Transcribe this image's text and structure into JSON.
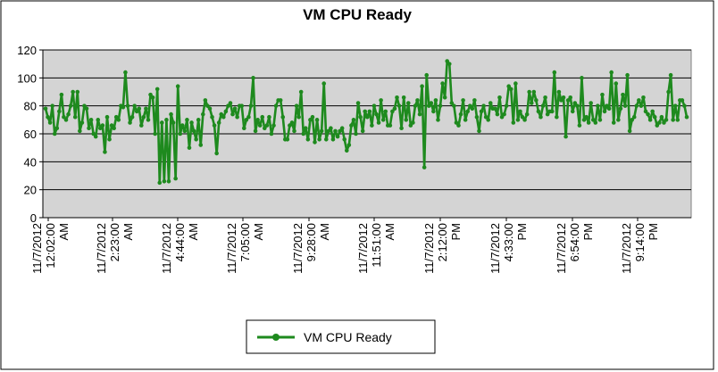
{
  "chart_data": {
    "type": "line",
    "title": "VM CPU Ready",
    "xlabel": "",
    "ylabel": "",
    "ylim": [
      0,
      120
    ],
    "yticks": [
      0,
      20,
      40,
      60,
      80,
      100,
      120
    ],
    "grid": true,
    "legend_position": "bottom",
    "colors": {
      "series": "#1e8a1e",
      "plot_bg": "#d4d4d4",
      "grid": "#000000"
    },
    "x_ticks": [
      {
        "date": "11/7/2012",
        "time": "12:02:00",
        "ampm": "AM"
      },
      {
        "date": "11/7/2012",
        "time": "2:23:00",
        "ampm": "AM"
      },
      {
        "date": "11/7/2012",
        "time": "4:44:00",
        "ampm": "AM"
      },
      {
        "date": "11/7/2012",
        "time": "7:05:00",
        "ampm": "AM"
      },
      {
        "date": "11/7/2012",
        "time": "9:28:00",
        "ampm": "AM"
      },
      {
        "date": "11/7/2012",
        "time": "11:51:00",
        "ampm": "AM"
      },
      {
        "date": "11/7/2012",
        "time": "2:12:00",
        "ampm": "PM"
      },
      {
        "date": "11/7/2012",
        "time": "4:33:00",
        "ampm": "PM"
      },
      {
        "date": "11/7/2012",
        "time": "6:54:00",
        "ampm": "PM"
      },
      {
        "date": "11/7/2012",
        "time": "9:14:00",
        "ampm": "PM"
      }
    ],
    "series": [
      {
        "name": "VM CPU Ready",
        "values": [
          78,
          72,
          68,
          80,
          60,
          64,
          76,
          88,
          72,
          70,
          74,
          80,
          90,
          72,
          90,
          62,
          68,
          80,
          78,
          64,
          70,
          60,
          58,
          70,
          64,
          66,
          47,
          72,
          56,
          66,
          64,
          72,
          70,
          80,
          79,
          104,
          80,
          68,
          72,
          80,
          76,
          78,
          66,
          72,
          78,
          70,
          88,
          86,
          60,
          92,
          25,
          68,
          26,
          70,
          26,
          74,
          68,
          28,
          94,
          60,
          66,
          62,
          70,
          50,
          68,
          62,
          56,
          70,
          52,
          74,
          84,
          80,
          78,
          72,
          66,
          46,
          68,
          74,
          72,
          76,
          80,
          82,
          74,
          78,
          72,
          80,
          80,
          64,
          70,
          72,
          80,
          100,
          62,
          70,
          66,
          72,
          64,
          66,
          72,
          60,
          66,
          80,
          84,
          84,
          72,
          56,
          56,
          66,
          68,
          62,
          80,
          72,
          90,
          60,
          64,
          56,
          70,
          72,
          54,
          70,
          56,
          62,
          96,
          56,
          62,
          64,
          56,
          62,
          58,
          62,
          64,
          56,
          48,
          52,
          66,
          70,
          60,
          82,
          72,
          62,
          76,
          72,
          76,
          66,
          80,
          74,
          68,
          84,
          70,
          76,
          66,
          66,
          76,
          78,
          86,
          80,
          64,
          86,
          70,
          82,
          66,
          68,
          80,
          84,
          74,
          94,
          36,
          102,
          80,
          82,
          76,
          84,
          70,
          80,
          96,
          86,
          112,
          110,
          82,
          80,
          68,
          66,
          74,
          84,
          70,
          76,
          80,
          78,
          84,
          72,
          62,
          76,
          80,
          72,
          70,
          82,
          78,
          78,
          74,
          86,
          72,
          74,
          80,
          94,
          92,
          68,
          96,
          70,
          76,
          72,
          70,
          74,
          90,
          82,
          90,
          84,
          76,
          72,
          80,
          86,
          74,
          76,
          76,
          104,
          72,
          90,
          84,
          86,
          58,
          84,
          86,
          76,
          82,
          80,
          66,
          100,
          70,
          72,
          68,
          82,
          70,
          68,
          80,
          70,
          88,
          76,
          80,
          78,
          104,
          68,
          96,
          70,
          78,
          88,
          80,
          102,
          62,
          70,
          72,
          80,
          84,
          80,
          86,
          76,
          74,
          70,
          76,
          72,
          66,
          68,
          72,
          68,
          70,
          90,
          102,
          70,
          80,
          70,
          84,
          84,
          80,
          72
        ]
      }
    ]
  }
}
